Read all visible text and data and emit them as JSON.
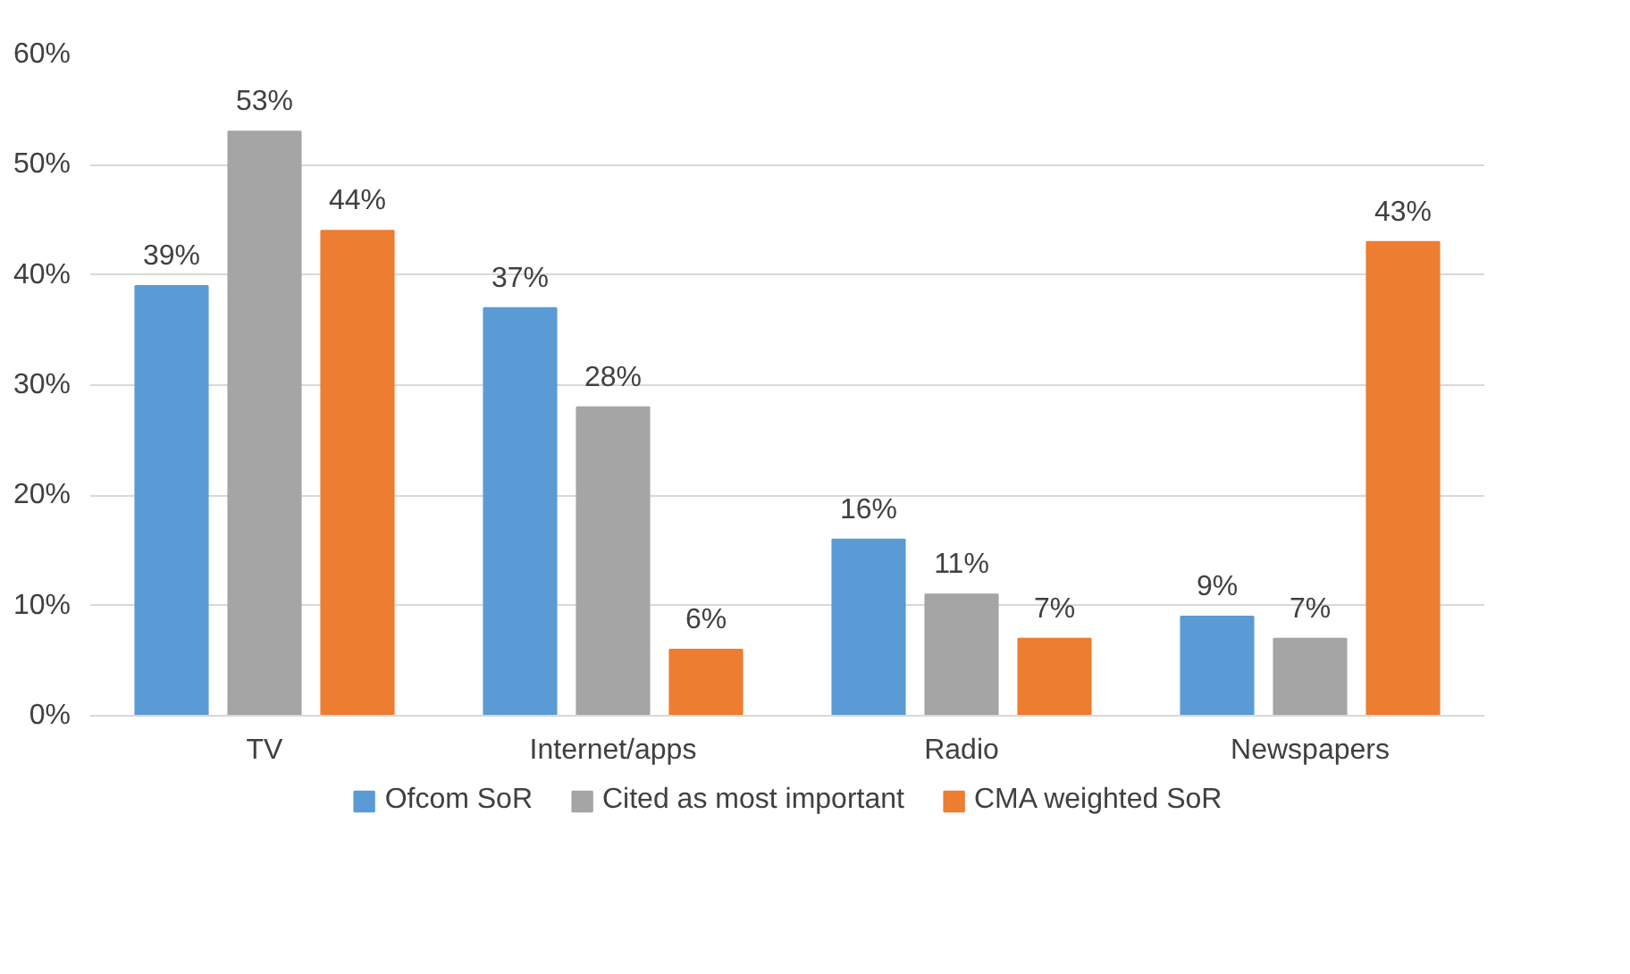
{
  "chart_data": {
    "type": "bar",
    "categories": [
      "TV",
      "Internet/apps",
      "Radio",
      "Newspapers"
    ],
    "series": [
      {
        "name": "Ofcom SoR",
        "color": "#5b9bd5",
        "values": [
          39,
          37,
          16,
          9
        ],
        "value_labels": [
          "39%",
          "37%",
          "16%",
          "9%"
        ]
      },
      {
        "name": "Cited as most important",
        "color": "#a5a5a5",
        "values": [
          53,
          28,
          11,
          7
        ],
        "value_labels": [
          "53%",
          "28%",
          "11%",
          "7%"
        ]
      },
      {
        "name": "CMA weighted SoR",
        "color": "#ed7d31",
        "values": [
          44,
          6,
          7,
          43
        ],
        "value_labels": [
          "44%",
          "6%",
          "7%",
          "43%"
        ]
      }
    ],
    "ylim": [
      0,
      60
    ],
    "yticks": [
      {
        "value": 0,
        "label": "0%"
      },
      {
        "value": 10,
        "label": "10%"
      },
      {
        "value": 20,
        "label": "20%"
      },
      {
        "value": 30,
        "label": "30%"
      },
      {
        "value": 40,
        "label": "40%"
      },
      {
        "value": 50,
        "label": "50%"
      },
      {
        "value": 60,
        "label": "60%"
      }
    ],
    "grid": "y",
    "legend": "bottom"
  }
}
